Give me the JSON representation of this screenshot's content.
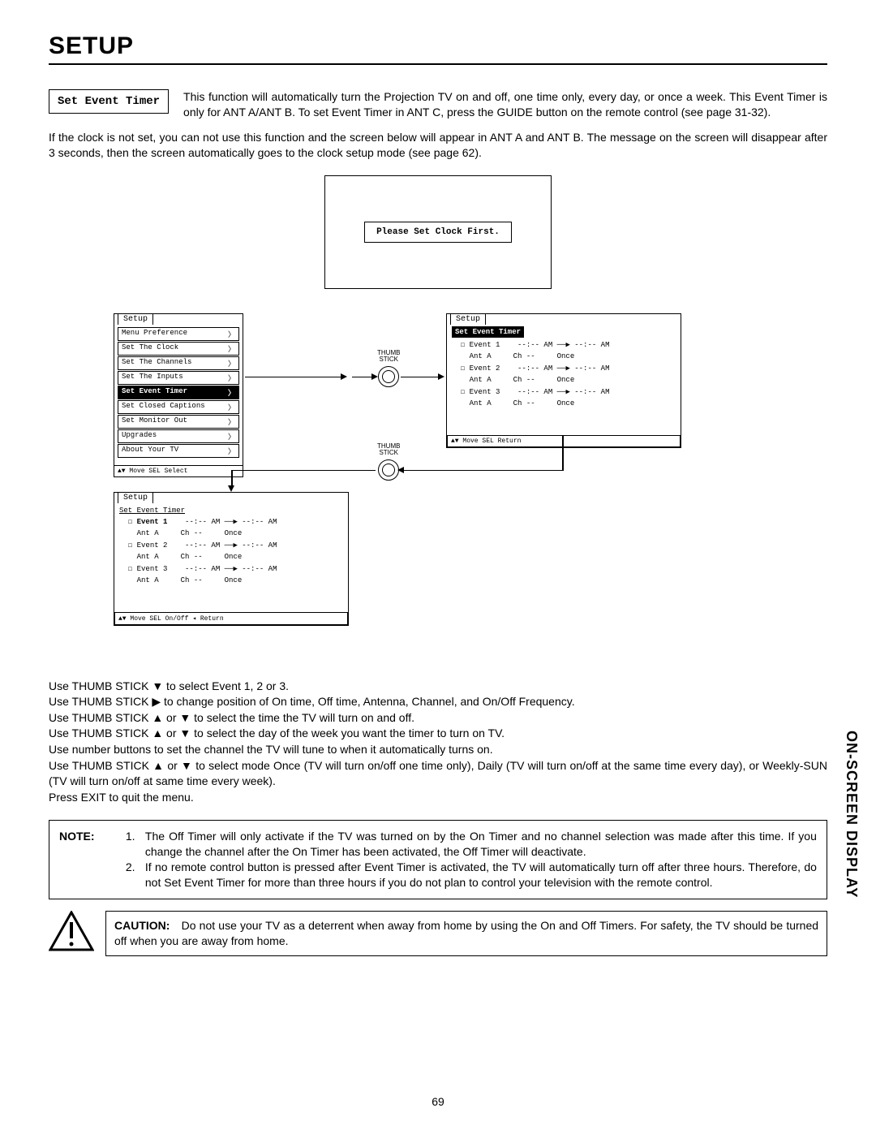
{
  "title": "SETUP",
  "box_label": "Set Event Timer",
  "intro": "This function will automatically turn the Projection TV on and off, one time only, every day, or once a week.  This Event Timer is only for ANT A/ANT B.  To set Event Timer in ANT C, press the GUIDE button on the remote control (see page 31-32).",
  "para2": "If the clock is not set, you can not use this function and the screen below will appear in ANT A and ANT B.  The message on the screen will disappear after 3 seconds, then the screen automatically goes to the clock setup mode (see page 62).",
  "clock_msg": "Please Set Clock First.",
  "setup_menu": {
    "tab": "Setup",
    "items": [
      "Menu Preference",
      "Set The Clock",
      "Set The Channels",
      "Set The Inputs",
      "Set Event Timer",
      "Set Closed Captions",
      "Set Monitor Out",
      "Upgrades",
      "About Your TV"
    ],
    "highlight": "Set Event Timer",
    "footer": "▲▼ Move  SEL Select"
  },
  "event_panel": {
    "tab": "Setup",
    "header": "Set Event Timer",
    "rows": [
      {
        "e": "Event 1",
        "t": "--:-- AM ──▶ --:-- AM"
      },
      {
        "a": "Ant A",
        "c": "Ch --",
        "f": "Once"
      },
      {
        "e": "Event 2",
        "t": "--:-- AM ──▶ --:-- AM"
      },
      {
        "a": "Ant A",
        "c": "Ch --",
        "f": "Once"
      },
      {
        "e": "Event 3",
        "t": "--:-- AM ──▶ --:-- AM"
      },
      {
        "a": "Ant A",
        "c": "Ch --",
        "f": "Once"
      }
    ],
    "footer1": "▲▼ Move  SEL Return",
    "footer2": "▲▼ Move  SEL On/Off  ◂ Return"
  },
  "thumb": "THUMB\nSTICK",
  "instr": [
    "Use THUMB STICK ▼ to select Event 1, 2 or 3.",
    "Use THUMB STICK ▶ to change position of On time, Off time, Antenna, Channel, and On/Off Frequency.",
    "Use THUMB STICK ▲ or ▼ to select the time the TV will turn on and off.",
    "Use THUMB STICK ▲ or ▼ to select the day of the week you want the timer to turn on TV.",
    "Use number buttons to set the channel the TV will tune to when it automatically turns on.",
    "Use THUMB STICK ▲ or ▼ to select mode Once (TV will turn on/off one time only), Daily (TV will turn on/off at the same time every day), or Weekly-SUN (TV will turn on/off at same time every week).",
    "Press EXIT to quit the menu."
  ],
  "note": {
    "lead": "NOTE:",
    "items": [
      "The Off Timer will only activate if the TV was turned on by the On Timer and no channel selection was made after this time.  If you change the channel after the On Timer has been activated, the Off Timer will deactivate.",
      "If no remote control button is pressed after Event Timer is activated, the TV will automatically turn off after three hours. Therefore, do not Set Event Timer for more than three hours if you do not plan to control your television with the remote control."
    ]
  },
  "caution": {
    "lead": "CAUTION:",
    "text": "Do not use your TV as a deterrent when away from home by using the On and Off Timers.  For safety, the TV should be turned off when you are away from home."
  },
  "page_num": "69",
  "side_label": "ON-SCREEN DISPLAY"
}
